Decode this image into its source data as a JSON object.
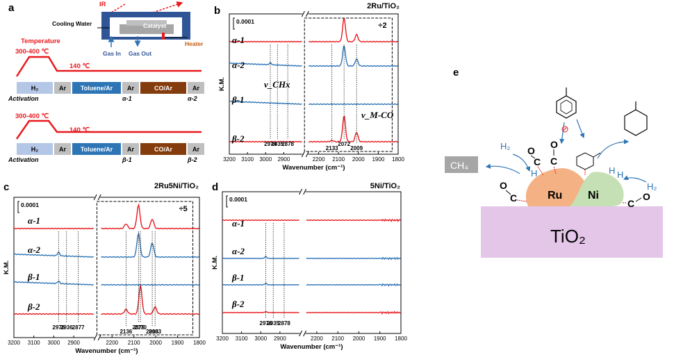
{
  "panel_a": {
    "label": "a",
    "setup": {
      "ir": "IR",
      "cooling_water": "Cooling Water",
      "catalyst": "Catalyst",
      "gas_in": "Gas In",
      "gas_out": "Gas Out",
      "heater": "Heater"
    },
    "temperature_label": "Temperature",
    "high_temp": "300-400 ℃",
    "low_temp": "140 ℃",
    "protocol_1": {
      "steps": [
        "H₂",
        "Ar",
        "Toluene/Ar",
        "Ar",
        "CO/Ar",
        "Ar"
      ],
      "notes": [
        "Activation",
        "α-1",
        "α-2"
      ]
    },
    "protocol_2": {
      "steps": [
        "H₂",
        "Ar",
        "Toluene/Ar",
        "Ar",
        "CO/Ar",
        "Ar"
      ],
      "notes": [
        "Activation",
        "β-1",
        "β-2"
      ]
    }
  },
  "colors": {
    "red": "#e8191d",
    "blue": "#2e75b6",
    "h2": "#b4c7e7",
    "ar": "#bfbfbf",
    "toluene": "#2e75b6",
    "co": "#843c0c",
    "ru": "#f4b183",
    "ni": "#c5e0b4",
    "tio2": "#e4c6e8",
    "ch4": "#a6a6a6"
  },
  "chart_data": [
    {
      "id": "b",
      "panel_label": "b",
      "type": "line",
      "title": "2Ru/TiO₂",
      "xlabel": "Wavenumber (cm⁻¹)",
      "ylabel": "K.M.",
      "xlim": [
        3200,
        1800
      ],
      "axis_break": [
        2800,
        2250
      ],
      "xticks": [
        3200,
        3100,
        3000,
        2900,
        2200,
        2100,
        2000,
        1900,
        1800
      ],
      "scale_bar": "0.0001",
      "zoom_box_factor": "÷2",
      "series": [
        {
          "name": "α-1",
          "color": "red",
          "peaks": [
            [
              2072,
              1.0
            ],
            [
              2009,
              0.3
            ]
          ]
        },
        {
          "name": "α-2",
          "color": "blue",
          "peaks": [
            [
              2072,
              0.85
            ],
            [
              2009,
              0.3
            ],
            [
              2974,
              0.08
            ]
          ]
        },
        {
          "name": "β-1",
          "color": "blue",
          "peaks": []
        },
        {
          "name": "β-2",
          "color": "red",
          "peaks": [
            [
              2072,
              1.1
            ],
            [
              2009,
              0.4
            ],
            [
              2133,
              0.05
            ]
          ]
        }
      ],
      "peak_labels": [
        "2974",
        "2935",
        "2878",
        "2133",
        "2072",
        "2009"
      ],
      "annotations": [
        "v_CHx",
        "v_M-CO"
      ]
    },
    {
      "id": "c",
      "panel_label": "c",
      "type": "line",
      "title": "2Ru5Ni/TiO₂",
      "xlabel": "Wavenumber (cm⁻¹)",
      "ylabel": "K.M.",
      "xlim": [
        3200,
        1800
      ],
      "axis_break": [
        2800,
        2250
      ],
      "xticks": [
        3200,
        3100,
        3000,
        2900,
        2200,
        2100,
        2000,
        1900,
        1800
      ],
      "scale_bar": "0.0001",
      "zoom_box_factor": "÷5",
      "series": [
        {
          "name": "α-1",
          "color": "red",
          "peaks": [
            [
              2079,
              1.0
            ],
            [
              2016,
              0.4
            ],
            [
              2136,
              0.2
            ]
          ]
        },
        {
          "name": "α-2",
          "color": "blue",
          "peaks": [
            [
              2079,
              1.0
            ],
            [
              2016,
              0.6
            ],
            [
              2976,
              0.15
            ]
          ]
        },
        {
          "name": "β-1",
          "color": "blue",
          "peaks": [
            [
              2976,
              0.1
            ]
          ]
        },
        {
          "name": "β-2",
          "color": "red",
          "peaks": [
            [
              2070,
              1.2
            ],
            [
              2003,
              0.3
            ],
            [
              2136,
              0.2
            ]
          ]
        }
      ],
      "peak_labels": [
        "2976",
        "2936",
        "2877",
        "2136",
        "2070",
        "2003",
        "2079",
        "2016"
      ]
    },
    {
      "id": "d",
      "panel_label": "d",
      "type": "line",
      "title": "5Ni/TiO₂",
      "xlabel": "Wavenumber (cm⁻¹)",
      "ylabel": "K.M.",
      "xlim": [
        3200,
        1800
      ],
      "axis_break": [
        2800,
        2250
      ],
      "xticks": [
        3200,
        3100,
        3000,
        2900,
        2200,
        2100,
        2000,
        1900,
        1800
      ],
      "scale_bar": "0.0001",
      "series": [
        {
          "name": "α-1",
          "color": "red",
          "peaks": []
        },
        {
          "name": "α-2",
          "color": "blue",
          "peaks": [
            [
              2974,
              0.1
            ]
          ]
        },
        {
          "name": "β-1",
          "color": "blue",
          "peaks": [
            [
              2974,
              0.08
            ]
          ]
        },
        {
          "name": "β-2",
          "color": "red",
          "peaks": [
            [
              2974,
              0.05
            ]
          ]
        }
      ],
      "peak_labels": [
        "2974",
        "2935",
        "2878"
      ]
    }
  ],
  "panel_e": {
    "label": "e",
    "ru": "Ru",
    "ni": "Ni",
    "support": "TiO₂",
    "ch4": "CH₄",
    "h2": "H₂",
    "h": "H",
    "o": "O",
    "c": "C"
  }
}
